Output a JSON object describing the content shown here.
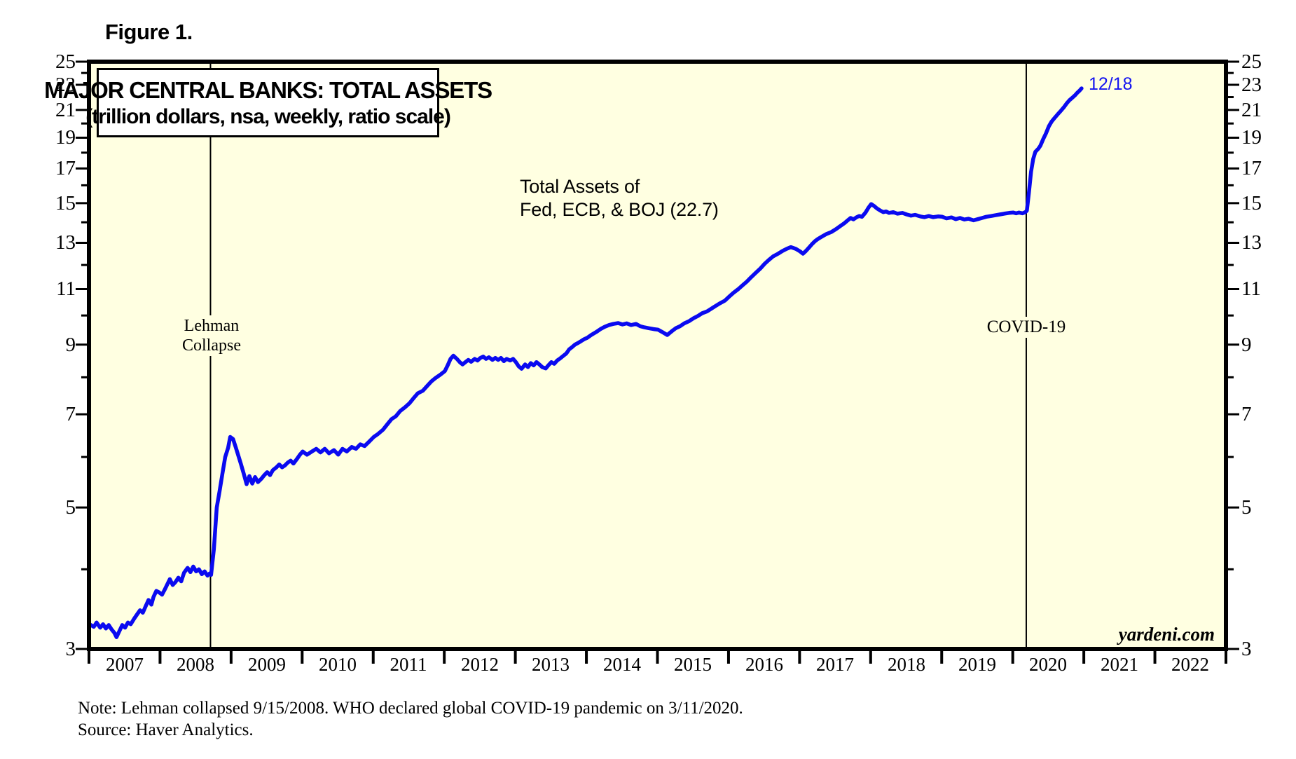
{
  "figure_label": "Figure 1.",
  "title_box": {
    "line1": "MAJOR CENTRAL BANKS: TOTAL ASSETS",
    "line2": "(trillion dollars, nsa, weekly, ratio scale)"
  },
  "annotations": {
    "series_line1": "Total Assets of",
    "series_line2": "Fed, ECB, & BOJ (22.7)",
    "lehman_line1": "Lehman",
    "lehman_line2": "Collapse",
    "covid": "COVID-19",
    "last_point_label": "12/18",
    "watermark": "yardeni.com"
  },
  "footnotes": {
    "note": "Note: Lehman collapsed 9/15/2008. WHO declared global COVID-19 pandemic on 3/11/2020.",
    "source": "Source: Haver Analytics."
  },
  "colors": {
    "line": "#0a0af0",
    "plot_bg": "#ffffe1",
    "label_blue": "#1414f0",
    "axis": "#000000"
  },
  "chart_data": {
    "type": "line",
    "title": "MAJOR CENTRAL BANKS: TOTAL ASSETS",
    "subtitle": "(trillion dollars, nsa, weekly, ratio scale)",
    "y_scale": "log",
    "y_range": [
      3,
      25
    ],
    "x_range": [
      2007,
      2023
    ],
    "grid": false,
    "y_ticks_labeled": [
      3,
      5,
      7,
      9,
      11,
      13,
      15,
      17,
      19,
      21,
      23,
      25
    ],
    "y_ticks_minor": [
      4,
      6,
      8,
      10,
      12,
      14,
      16,
      18,
      20,
      22,
      24
    ],
    "x_years": [
      2007,
      2008,
      2009,
      2010,
      2011,
      2012,
      2013,
      2014,
      2015,
      2016,
      2017,
      2018,
      2019,
      2020,
      2021,
      2022
    ],
    "events": [
      {
        "label": "Lehman Collapse",
        "x": 2008.71
      },
      {
        "label": "COVID-19",
        "x": 2020.19
      }
    ],
    "series": [
      {
        "name": "Total Assets of Fed, ECB, & BOJ",
        "last_value": 22.7,
        "last_label": "12/18",
        "points": [
          [
            2007.0,
            3.28
          ],
          [
            2007.06,
            3.25
          ],
          [
            2007.1,
            3.3
          ],
          [
            2007.15,
            3.24
          ],
          [
            2007.19,
            3.28
          ],
          [
            2007.23,
            3.23
          ],
          [
            2007.27,
            3.27
          ],
          [
            2007.31,
            3.22
          ],
          [
            2007.35,
            3.18
          ],
          [
            2007.38,
            3.13
          ],
          [
            2007.42,
            3.2
          ],
          [
            2007.46,
            3.27
          ],
          [
            2007.5,
            3.24
          ],
          [
            2007.54,
            3.3
          ],
          [
            2007.58,
            3.28
          ],
          [
            2007.63,
            3.35
          ],
          [
            2007.67,
            3.4
          ],
          [
            2007.71,
            3.45
          ],
          [
            2007.75,
            3.42
          ],
          [
            2007.79,
            3.5
          ],
          [
            2007.83,
            3.58
          ],
          [
            2007.87,
            3.52
          ],
          [
            2007.9,
            3.62
          ],
          [
            2007.94,
            3.7
          ],
          [
            2007.98,
            3.68
          ],
          [
            2008.02,
            3.65
          ],
          [
            2008.06,
            3.72
          ],
          [
            2008.1,
            3.8
          ],
          [
            2008.13,
            3.86
          ],
          [
            2008.17,
            3.78
          ],
          [
            2008.21,
            3.82
          ],
          [
            2008.25,
            3.88
          ],
          [
            2008.29,
            3.83
          ],
          [
            2008.33,
            3.95
          ],
          [
            2008.38,
            4.02
          ],
          [
            2008.42,
            3.96
          ],
          [
            2008.46,
            4.04
          ],
          [
            2008.5,
            3.97
          ],
          [
            2008.54,
            4.0
          ],
          [
            2008.58,
            3.93
          ],
          [
            2008.62,
            3.97
          ],
          [
            2008.66,
            3.91
          ],
          [
            2008.69,
            3.94
          ],
          [
            2008.71,
            3.92
          ],
          [
            2008.75,
            4.3
          ],
          [
            2008.79,
            5.0
          ],
          [
            2008.83,
            5.3
          ],
          [
            2008.87,
            5.65
          ],
          [
            2008.91,
            6.0
          ],
          [
            2008.95,
            6.2
          ],
          [
            2008.98,
            6.45
          ],
          [
            2009.02,
            6.4
          ],
          [
            2009.06,
            6.2
          ],
          [
            2009.1,
            6.0
          ],
          [
            2009.13,
            5.85
          ],
          [
            2009.17,
            5.65
          ],
          [
            2009.21,
            5.44
          ],
          [
            2009.25,
            5.6
          ],
          [
            2009.29,
            5.45
          ],
          [
            2009.33,
            5.58
          ],
          [
            2009.37,
            5.48
          ],
          [
            2009.42,
            5.55
          ],
          [
            2009.46,
            5.62
          ],
          [
            2009.5,
            5.68
          ],
          [
            2009.54,
            5.62
          ],
          [
            2009.58,
            5.72
          ],
          [
            2009.63,
            5.78
          ],
          [
            2009.67,
            5.84
          ],
          [
            2009.71,
            5.78
          ],
          [
            2009.75,
            5.82
          ],
          [
            2009.79,
            5.88
          ],
          [
            2009.83,
            5.92
          ],
          [
            2009.87,
            5.86
          ],
          [
            2009.92,
            5.96
          ],
          [
            2009.96,
            6.05
          ],
          [
            2010.0,
            6.12
          ],
          [
            2010.06,
            6.05
          ],
          [
            2010.13,
            6.12
          ],
          [
            2010.19,
            6.18
          ],
          [
            2010.25,
            6.1
          ],
          [
            2010.31,
            6.18
          ],
          [
            2010.37,
            6.08
          ],
          [
            2010.44,
            6.15
          ],
          [
            2010.5,
            6.05
          ],
          [
            2010.56,
            6.18
          ],
          [
            2010.62,
            6.12
          ],
          [
            2010.69,
            6.22
          ],
          [
            2010.75,
            6.18
          ],
          [
            2010.81,
            6.28
          ],
          [
            2010.87,
            6.24
          ],
          [
            2010.94,
            6.35
          ],
          [
            2011.0,
            6.45
          ],
          [
            2011.06,
            6.52
          ],
          [
            2011.13,
            6.62
          ],
          [
            2011.19,
            6.75
          ],
          [
            2011.25,
            6.88
          ],
          [
            2011.31,
            6.95
          ],
          [
            2011.37,
            7.08
          ],
          [
            2011.44,
            7.18
          ],
          [
            2011.5,
            7.28
          ],
          [
            2011.56,
            7.42
          ],
          [
            2011.62,
            7.55
          ],
          [
            2011.69,
            7.62
          ],
          [
            2011.75,
            7.75
          ],
          [
            2011.81,
            7.88
          ],
          [
            2011.87,
            7.98
          ],
          [
            2011.94,
            8.08
          ],
          [
            2012.0,
            8.18
          ],
          [
            2012.04,
            8.35
          ],
          [
            2012.08,
            8.55
          ],
          [
            2012.12,
            8.65
          ],
          [
            2012.17,
            8.55
          ],
          [
            2012.21,
            8.45
          ],
          [
            2012.25,
            8.38
          ],
          [
            2012.29,
            8.45
          ],
          [
            2012.33,
            8.52
          ],
          [
            2012.37,
            8.46
          ],
          [
            2012.42,
            8.55
          ],
          [
            2012.46,
            8.5
          ],
          [
            2012.5,
            8.58
          ],
          [
            2012.54,
            8.62
          ],
          [
            2012.58,
            8.55
          ],
          [
            2012.62,
            8.6
          ],
          [
            2012.67,
            8.52
          ],
          [
            2012.71,
            8.58
          ],
          [
            2012.75,
            8.52
          ],
          [
            2012.79,
            8.58
          ],
          [
            2012.83,
            8.48
          ],
          [
            2012.87,
            8.55
          ],
          [
            2012.92,
            8.5
          ],
          [
            2012.96,
            8.55
          ],
          [
            2013.0,
            8.45
          ],
          [
            2013.04,
            8.32
          ],
          [
            2013.08,
            8.25
          ],
          [
            2013.13,
            8.38
          ],
          [
            2013.17,
            8.3
          ],
          [
            2013.21,
            8.42
          ],
          [
            2013.25,
            8.35
          ],
          [
            2013.29,
            8.45
          ],
          [
            2013.33,
            8.38
          ],
          [
            2013.37,
            8.3
          ],
          [
            2013.42,
            8.26
          ],
          [
            2013.46,
            8.36
          ],
          [
            2013.5,
            8.45
          ],
          [
            2013.54,
            8.4
          ],
          [
            2013.58,
            8.5
          ],
          [
            2013.62,
            8.56
          ],
          [
            2013.67,
            8.65
          ],
          [
            2013.71,
            8.72
          ],
          [
            2013.75,
            8.85
          ],
          [
            2013.79,
            8.92
          ],
          [
            2013.83,
            9.0
          ],
          [
            2013.87,
            9.05
          ],
          [
            2013.92,
            9.12
          ],
          [
            2013.96,
            9.18
          ],
          [
            2014.0,
            9.22
          ],
          [
            2014.06,
            9.32
          ],
          [
            2014.13,
            9.42
          ],
          [
            2014.19,
            9.52
          ],
          [
            2014.25,
            9.6
          ],
          [
            2014.31,
            9.66
          ],
          [
            2014.37,
            9.7
          ],
          [
            2014.44,
            9.73
          ],
          [
            2014.5,
            9.68
          ],
          [
            2014.56,
            9.72
          ],
          [
            2014.62,
            9.66
          ],
          [
            2014.69,
            9.7
          ],
          [
            2014.75,
            9.62
          ],
          [
            2014.81,
            9.58
          ],
          [
            2014.87,
            9.55
          ],
          [
            2014.94,
            9.52
          ],
          [
            2015.0,
            9.5
          ],
          [
            2015.06,
            9.42
          ],
          [
            2015.13,
            9.32
          ],
          [
            2015.17,
            9.4
          ],
          [
            2015.21,
            9.48
          ],
          [
            2015.25,
            9.55
          ],
          [
            2015.31,
            9.62
          ],
          [
            2015.37,
            9.72
          ],
          [
            2015.44,
            9.8
          ],
          [
            2015.5,
            9.9
          ],
          [
            2015.56,
            9.98
          ],
          [
            2015.62,
            10.08
          ],
          [
            2015.69,
            10.15
          ],
          [
            2015.75,
            10.25
          ],
          [
            2015.81,
            10.35
          ],
          [
            2015.87,
            10.45
          ],
          [
            2015.94,
            10.55
          ],
          [
            2016.0,
            10.7
          ],
          [
            2016.06,
            10.85
          ],
          [
            2016.13,
            11.0
          ],
          [
            2016.19,
            11.15
          ],
          [
            2016.25,
            11.3
          ],
          [
            2016.31,
            11.48
          ],
          [
            2016.37,
            11.65
          ],
          [
            2016.44,
            11.85
          ],
          [
            2016.5,
            12.05
          ],
          [
            2016.56,
            12.22
          ],
          [
            2016.62,
            12.38
          ],
          [
            2016.69,
            12.5
          ],
          [
            2016.75,
            12.62
          ],
          [
            2016.81,
            12.72
          ],
          [
            2016.87,
            12.8
          ],
          [
            2016.94,
            12.72
          ],
          [
            2017.0,
            12.6
          ],
          [
            2017.04,
            12.5
          ],
          [
            2017.08,
            12.62
          ],
          [
            2017.13,
            12.8
          ],
          [
            2017.17,
            12.95
          ],
          [
            2017.21,
            13.08
          ],
          [
            2017.25,
            13.18
          ],
          [
            2017.31,
            13.3
          ],
          [
            2017.37,
            13.42
          ],
          [
            2017.44,
            13.52
          ],
          [
            2017.5,
            13.65
          ],
          [
            2017.56,
            13.8
          ],
          [
            2017.62,
            13.95
          ],
          [
            2017.67,
            14.1
          ],
          [
            2017.71,
            14.22
          ],
          [
            2017.75,
            14.15
          ],
          [
            2017.79,
            14.25
          ],
          [
            2017.83,
            14.32
          ],
          [
            2017.87,
            14.28
          ],
          [
            2017.92,
            14.5
          ],
          [
            2017.96,
            14.75
          ],
          [
            2018.0,
            14.95
          ],
          [
            2018.04,
            14.85
          ],
          [
            2018.08,
            14.72
          ],
          [
            2018.13,
            14.6
          ],
          [
            2018.17,
            14.52
          ],
          [
            2018.21,
            14.56
          ],
          [
            2018.25,
            14.48
          ],
          [
            2018.31,
            14.52
          ],
          [
            2018.37,
            14.44
          ],
          [
            2018.44,
            14.48
          ],
          [
            2018.5,
            14.4
          ],
          [
            2018.56,
            14.34
          ],
          [
            2018.62,
            14.38
          ],
          [
            2018.69,
            14.3
          ],
          [
            2018.75,
            14.26
          ],
          [
            2018.81,
            14.32
          ],
          [
            2018.87,
            14.26
          ],
          [
            2018.94,
            14.3
          ],
          [
            2019.0,
            14.28
          ],
          [
            2019.06,
            14.2
          ],
          [
            2019.13,
            14.25
          ],
          [
            2019.19,
            14.16
          ],
          [
            2019.25,
            14.22
          ],
          [
            2019.31,
            14.14
          ],
          [
            2019.37,
            14.18
          ],
          [
            2019.44,
            14.1
          ],
          [
            2019.5,
            14.16
          ],
          [
            2019.56,
            14.22
          ],
          [
            2019.62,
            14.28
          ],
          [
            2019.69,
            14.32
          ],
          [
            2019.75,
            14.36
          ],
          [
            2019.81,
            14.4
          ],
          [
            2019.87,
            14.44
          ],
          [
            2019.94,
            14.48
          ],
          [
            2020.0,
            14.5
          ],
          [
            2020.04,
            14.46
          ],
          [
            2020.08,
            14.5
          ],
          [
            2020.13,
            14.46
          ],
          [
            2020.17,
            14.52
          ],
          [
            2020.19,
            14.6
          ],
          [
            2020.22,
            15.6
          ],
          [
            2020.25,
            16.8
          ],
          [
            2020.28,
            17.6
          ],
          [
            2020.31,
            18.05
          ],
          [
            2020.35,
            18.25
          ],
          [
            2020.38,
            18.45
          ],
          [
            2020.42,
            18.9
          ],
          [
            2020.46,
            19.3
          ],
          [
            2020.5,
            19.8
          ],
          [
            2020.54,
            20.15
          ],
          [
            2020.58,
            20.4
          ],
          [
            2020.62,
            20.65
          ],
          [
            2020.67,
            20.95
          ],
          [
            2020.71,
            21.2
          ],
          [
            2020.75,
            21.5
          ],
          [
            2020.79,
            21.75
          ],
          [
            2020.83,
            21.95
          ],
          [
            2020.87,
            22.15
          ],
          [
            2020.9,
            22.35
          ],
          [
            2020.93,
            22.5
          ],
          [
            2020.96,
            22.7
          ]
        ]
      }
    ]
  }
}
